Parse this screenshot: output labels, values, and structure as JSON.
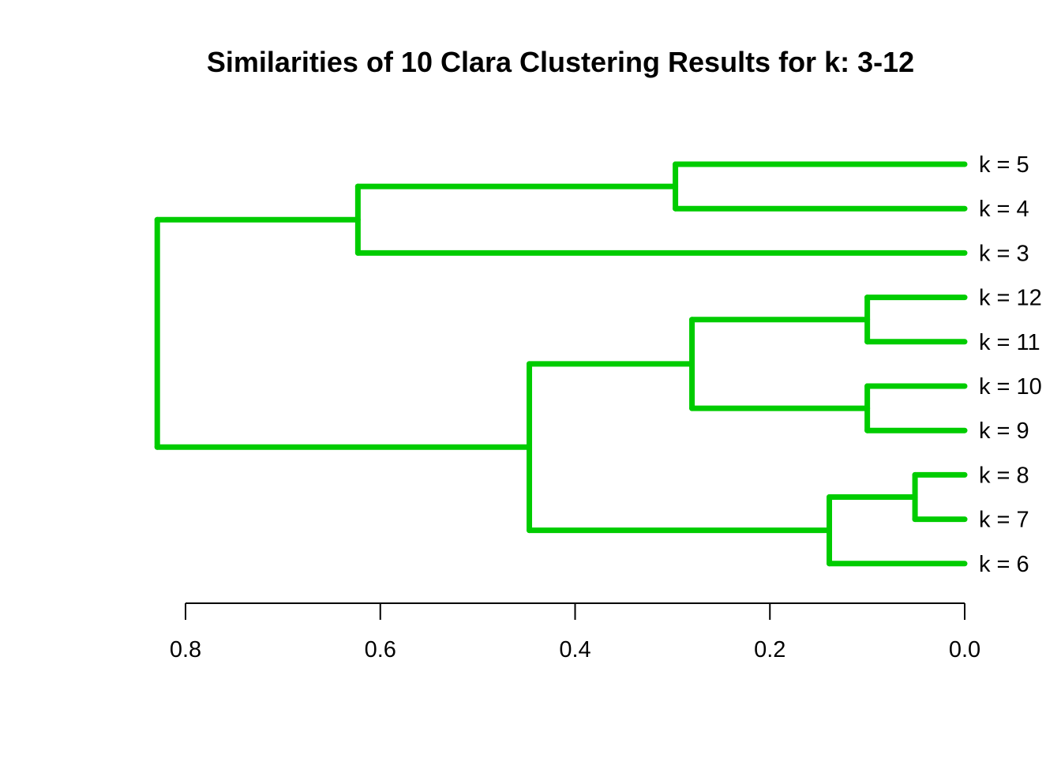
{
  "chart_data": {
    "type": "dendrogram",
    "title": "Similarities of 10 Clara Clustering Results for k: 3-12",
    "orientation": "horizontal",
    "axis": {
      "ticks": [
        0.8,
        0.6,
        0.4,
        0.2,
        0.0
      ],
      "tick_labels": [
        "0.8",
        "0.6",
        "0.4",
        "0.2",
        "0.0"
      ],
      "range": [
        0.8,
        0.0
      ]
    },
    "leaves": [
      "k = 5",
      "k = 4",
      "k = 3",
      "k = 12",
      "k = 11",
      "k = 10",
      "k = 9",
      "k = 8",
      "k = 7",
      "k = 6"
    ],
    "merges": [
      {
        "id": "m1",
        "left": "k = 5",
        "right": "k = 4",
        "height": 0.297
      },
      {
        "id": "m2",
        "left": "m1",
        "right": "k = 3",
        "height": 0.623
      },
      {
        "id": "m3",
        "left": "k = 12",
        "right": "k = 11",
        "height": 0.1
      },
      {
        "id": "m4",
        "left": "k = 10",
        "right": "k = 9",
        "height": 0.1
      },
      {
        "id": "m5",
        "left": "m3",
        "right": "m4",
        "height": 0.28
      },
      {
        "id": "m6",
        "left": "k = 8",
        "right": "k = 7",
        "height": 0.051
      },
      {
        "id": "m7",
        "left": "m6",
        "right": "k = 6",
        "height": 0.139
      },
      {
        "id": "m8",
        "left": "m5",
        "right": "m7",
        "height": 0.447
      },
      {
        "id": "m9",
        "left": "m2",
        "right": "m8",
        "height": 0.829
      }
    ],
    "line_color": "#00cc00"
  }
}
